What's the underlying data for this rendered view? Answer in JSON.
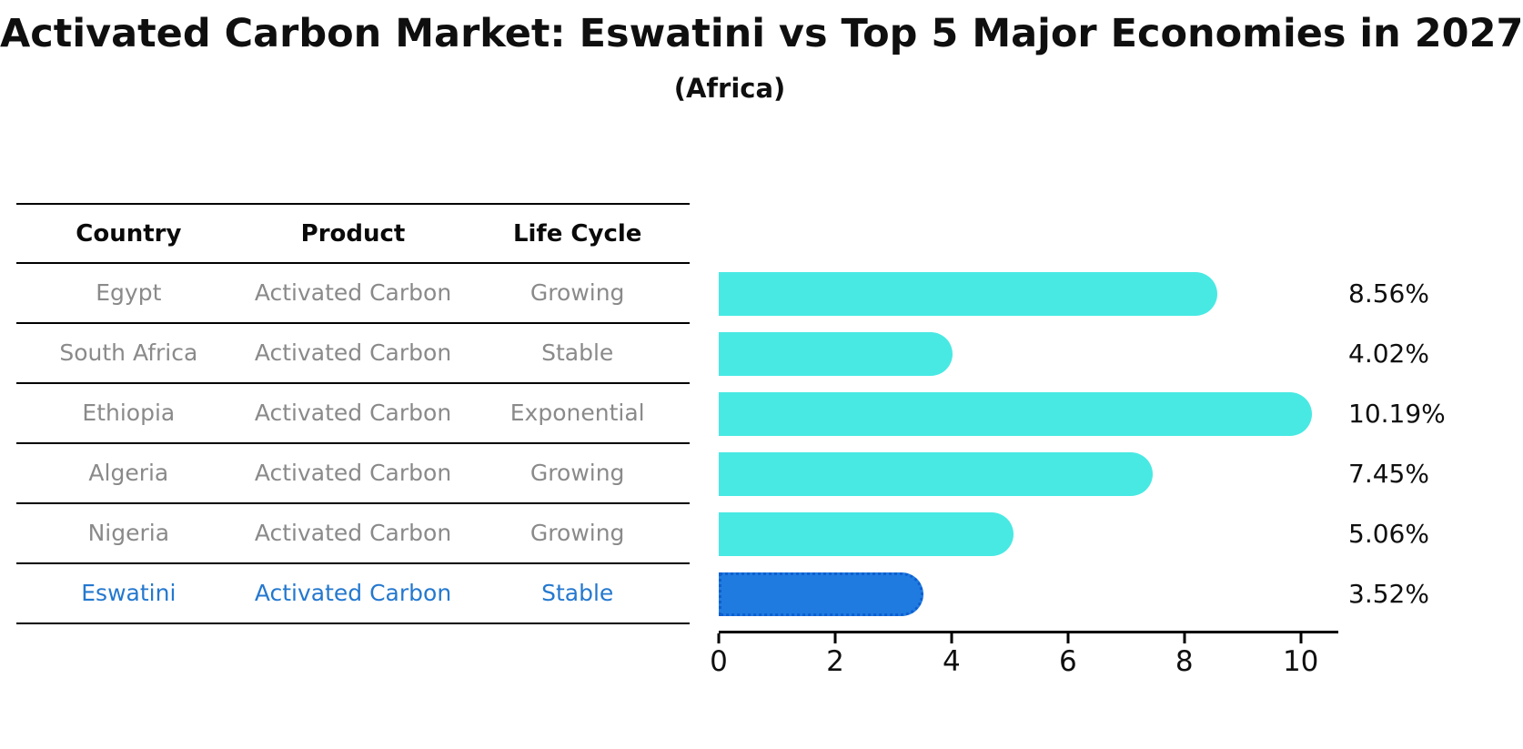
{
  "title": "Activated Carbon Market: Eswatini vs Top 5 Major Economies in 2027",
  "subtitle": "(Africa)",
  "table": {
    "headers": [
      "Country",
      "Product",
      "Life Cycle"
    ],
    "rows": [
      {
        "country": "Egypt",
        "product": "Activated Carbon",
        "life_cycle": "Growing",
        "highlight": false
      },
      {
        "country": "South Africa",
        "product": "Activated Carbon",
        "life_cycle": "Stable",
        "highlight": false
      },
      {
        "country": "Ethiopia",
        "product": "Activated Carbon",
        "life_cycle": "Exponential",
        "highlight": false
      },
      {
        "country": "Algeria",
        "product": "Activated Carbon",
        "life_cycle": "Growing",
        "highlight": false
      },
      {
        "country": "Nigeria",
        "product": "Activated Carbon",
        "life_cycle": "Growing",
        "highlight": false
      },
      {
        "country": "Eswatini",
        "product": "Activated Carbon",
        "life_cycle": "Stable",
        "highlight": true
      }
    ]
  },
  "chart_data": {
    "type": "bar",
    "orientation": "horizontal",
    "title": "Activated Carbon Market: Eswatini vs Top 5 Major Economies in 2027",
    "subtitle": "(Africa)",
    "categories": [
      "Egypt",
      "South Africa",
      "Ethiopia",
      "Algeria",
      "Nigeria",
      "Eswatini"
    ],
    "values": [
      8.56,
      4.02,
      10.19,
      7.45,
      5.06,
      3.52
    ],
    "value_labels": [
      "8.56%",
      "4.02%",
      "10.19%",
      "7.45%",
      "5.06%",
      "3.52%"
    ],
    "xticks": [
      0,
      2,
      4,
      6,
      8,
      10
    ],
    "xlim": [
      0,
      10.63
    ],
    "xlabel": "",
    "ylabel": "",
    "grid": false,
    "legend": false,
    "bar_color": "#48E9E3",
    "highlight_color": "#1F7BE0",
    "highlight_border_color": "#0E5FD0",
    "highlight_index": 5,
    "highlight_text_color": "#2478CF"
  }
}
